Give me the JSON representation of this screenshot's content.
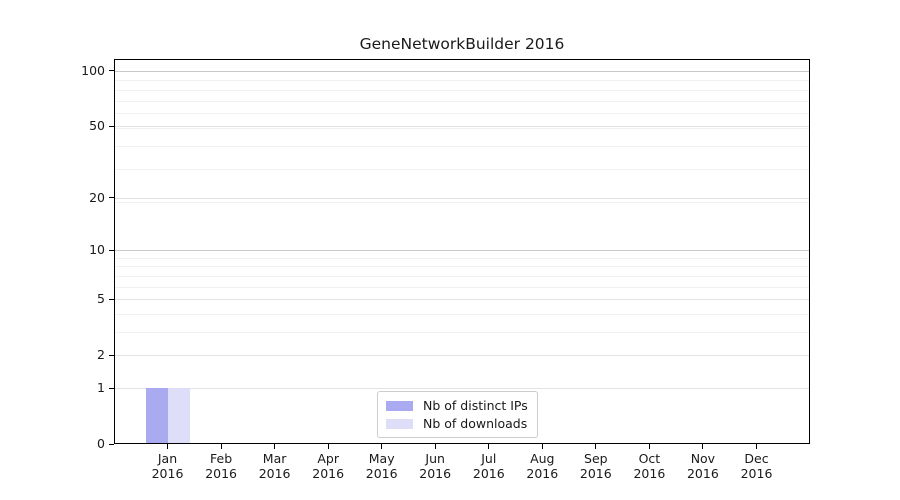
{
  "chart_data": {
    "type": "bar",
    "title": "GeneNetworkBuilder 2016",
    "x_month_labels": [
      "Jan",
      "Feb",
      "Mar",
      "Apr",
      "May",
      "Jun",
      "Jul",
      "Aug",
      "Sep",
      "Oct",
      "Nov",
      "Dec"
    ],
    "x_year_label": "2016",
    "series": [
      {
        "name": "Nb of distinct IPs",
        "color": "#aaaaf0",
        "values": [
          1,
          0,
          0,
          0,
          0,
          0,
          0,
          0,
          0,
          0,
          0,
          0
        ]
      },
      {
        "name": "Nb of downloads",
        "color": "#dedef8",
        "values": [
          1,
          0,
          0,
          0,
          0,
          0,
          0,
          0,
          0,
          0,
          0,
          0
        ]
      }
    ],
    "y_scale": "log1p",
    "y_tick_values": [
      0,
      1,
      2,
      5,
      10,
      20,
      50,
      100
    ],
    "ylim": [
      0,
      116
    ],
    "grid": "horizontal",
    "grid_minor_levels": [
      1,
      2,
      3,
      4,
      5,
      6,
      7,
      8,
      9,
      19,
      29,
      39,
      49,
      59,
      69,
      79,
      89
    ],
    "grid_emphasized_levels": [
      10,
      100
    ],
    "grid_tick_levels": [
      1,
      2,
      5,
      20,
      50
    ],
    "legend_position": "lower center"
  },
  "colors": {
    "grid_minor": "#f2f2f2",
    "grid_tick": "#e3e3e3",
    "grid_emphasized": "#c9c9c9",
    "spine": "#000000",
    "text": "#1a1a1a",
    "legend_border": "#cccccc"
  }
}
